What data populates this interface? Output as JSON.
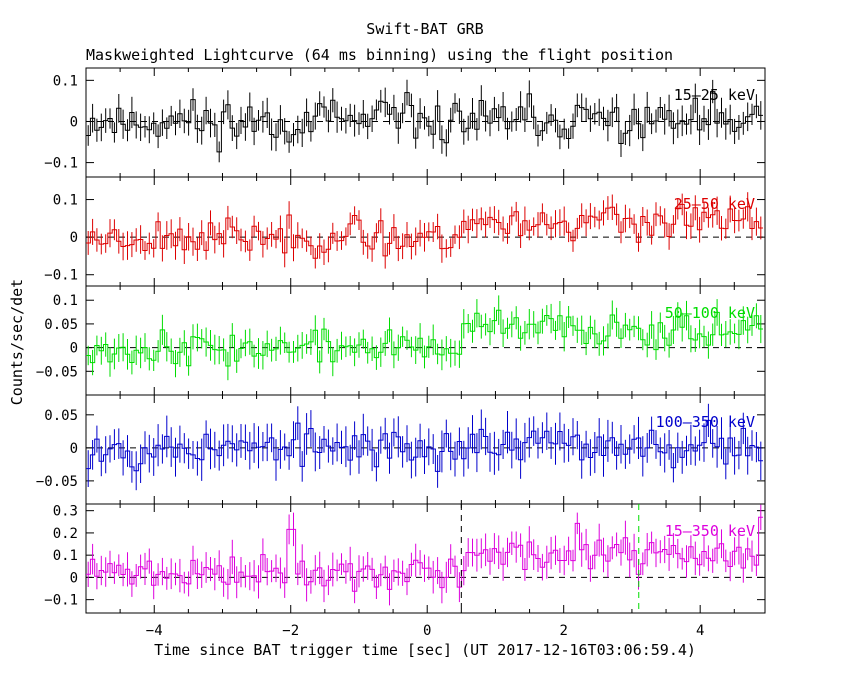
{
  "chart_data": {
    "type": "line",
    "title": "Swift-BAT GRB",
    "subtitle": "Maskweighted Lightcurve (64 ms binning) using the flight position",
    "xlabel": "Time since BAT trigger time [sec] (UT 2017-12-16T03:06:59.4)",
    "ylabel": "Counts/sec/det",
    "xlim": [
      -5.0,
      4.95
    ],
    "x_ticks": [
      -4,
      -2,
      0,
      2,
      4
    ],
    "bin_width_s": 0.064,
    "markers": [
      {
        "name": "t90-start",
        "x": 0.5,
        "color": "#000000",
        "panel": "15-350 keV"
      },
      {
        "name": "t90-end",
        "x": 3.1,
        "color": "#00dd00",
        "panel": "15-350 keV"
      }
    ],
    "panels": [
      {
        "label": "15–25 keV",
        "color": "#000000",
        "ylim": [
          -0.135,
          0.13
        ],
        "yticks": [
          -0.1,
          0,
          0.1
        ],
        "ytick_labels": [
          "−0.1",
          "0",
          "0.1"
        ],
        "sigma": 0.03,
        "sep": [
          0.0,
          0.0
        ],
        "noise": 0.045,
        "peaks": [],
        "err": 0.03,
        "seed": 11
      },
      {
        "label": "25–50 keV",
        "color": "#dd0000",
        "ylim": [
          -0.13,
          0.16
        ],
        "yticks": [
          -0.1,
          0,
          0.1
        ],
        "ytick_labels": [
          "−0.1",
          "0",
          "0.1"
        ],
        "sigma": 0.03,
        "sep": [
          0.0,
          0.04
        ],
        "noise": 0.04,
        "peaks": [],
        "err": 0.03,
        "seed": 23
      },
      {
        "label": "50–100 keV",
        "color": "#00dd00",
        "ylim": [
          -0.1,
          0.13
        ],
        "yticks": [
          -0.05,
          0,
          0.05,
          0.1
        ],
        "ytick_labels": [
          "−0.05",
          "0",
          "0.05",
          "0.1"
        ],
        "sigma": 0.02,
        "sep": [
          0.0,
          0.04
        ],
        "noise": 0.03,
        "peaks": [],
        "err": 0.025,
        "seed": 37
      },
      {
        "label": "100–350 keV",
        "color": "#0000cc",
        "ylim": [
          -0.085,
          0.08
        ],
        "yticks": [
          -0.05,
          0,
          0.05
        ],
        "ytick_labels": [
          "−0.05",
          "0",
          "0.05"
        ],
        "sigma": 0.02,
        "sep": [
          0.0,
          0.005
        ],
        "noise": 0.025,
        "peaks": [],
        "err": 0.025,
        "seed": 53
      },
      {
        "label": "15–350 keV",
        "color": "#dd00dd",
        "ylim": [
          -0.16,
          0.33
        ],
        "yticks": [
          -0.1,
          0,
          0.1,
          0.2,
          0.3
        ],
        "ytick_labels": [
          "−0.1",
          "0",
          "0.1",
          "0.2",
          "0.3"
        ],
        "sigma": 0.05,
        "sep": [
          0.02,
          0.1
        ],
        "noise": 0.06,
        "peaks": [
          [
            2.2,
            0.27
          ],
          [
            4.9,
            0.3
          ],
          [
            -2.0,
            0.24
          ]
        ],
        "err": 0.06,
        "seed": 71
      }
    ]
  }
}
